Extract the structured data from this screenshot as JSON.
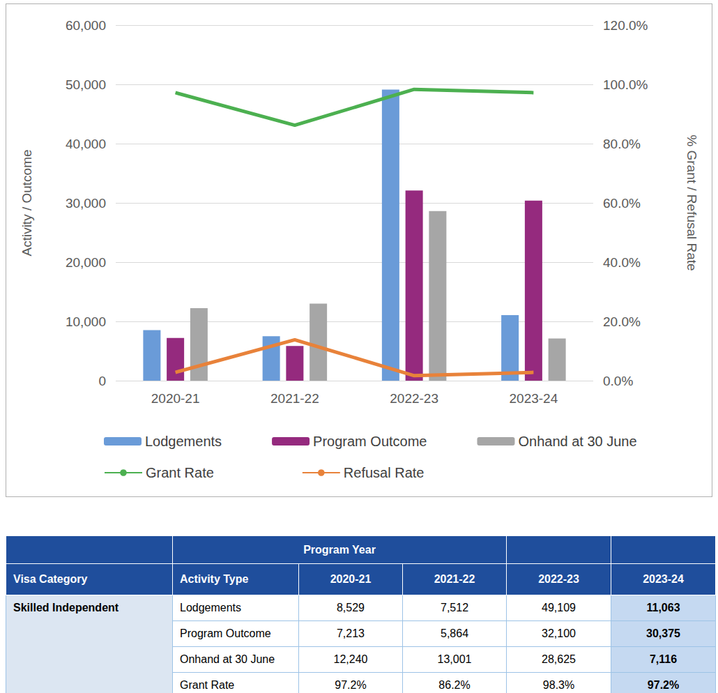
{
  "chart_data": {
    "type": "bar",
    "categories": [
      "2020-21",
      "2021-22",
      "2022-23",
      "2023-24"
    ],
    "series": [
      {
        "name": "Lodgements",
        "type": "bar",
        "color": "#6a9bd8",
        "values": [
          8529,
          7512,
          49109,
          11063
        ]
      },
      {
        "name": "Program Outcome",
        "type": "bar",
        "color": "#952a7e",
        "values": [
          7213,
          5864,
          32100,
          30375
        ]
      },
      {
        "name": "Onhand at 30 June",
        "type": "bar",
        "color": "#a6a6a6",
        "values": [
          12240,
          13001,
          28625,
          7116
        ]
      },
      {
        "name": "Grant Rate",
        "type": "line",
        "axis": "y2",
        "color": "#4cb050",
        "values": [
          97.2,
          86.2,
          98.3,
          97.2
        ]
      },
      {
        "name": "Refusal Rate",
        "type": "line",
        "axis": "y2",
        "color": "#e8823a",
        "values": [
          2.8,
          13.8,
          1.7,
          2.8
        ]
      }
    ],
    "ylabel": "Activity / Outcome",
    "y2label": "% Grant / Refusal Rate",
    "ylim": [
      0,
      60000
    ],
    "yticks": [
      0,
      {
        "value": 10000,
        "label": "10,000"
      },
      {
        "value": 20000,
        "label": "20,000"
      },
      {
        "value": 30000,
        "label": "30,000"
      },
      {
        "value": 40000,
        "label": "40,000"
      },
      {
        "value": 50000,
        "label": "50,000"
      },
      {
        "value": 60000,
        "label": "60,000"
      }
    ],
    "y2lim": [
      0,
      120
    ],
    "y2ticks": [
      {
        "value": 0,
        "label": "0.0%"
      },
      {
        "value": 20,
        "label": "20.0%"
      },
      {
        "value": 40,
        "label": "40.0%"
      },
      {
        "value": 60,
        "label": "60.0%"
      },
      {
        "value": 80,
        "label": "80.0%"
      },
      {
        "value": 100,
        "label": "100.0%"
      },
      {
        "value": 120,
        "label": "120.0%"
      }
    ],
    "grid": true,
    "legend": "bottom"
  },
  "table": {
    "header": {
      "group": "Program Year",
      "columns": [
        "Visa Category",
        "Activity Type",
        "2020-21",
        "2021-22",
        "2022-23",
        "2023-24"
      ]
    },
    "rows": [
      {
        "category": "Skilled Independent",
        "cells": [
          [
            "Lodgements",
            "8,529",
            "7,512",
            "49,109",
            "11,063"
          ],
          [
            "Program Outcome",
            "7,213",
            "5,864",
            "32,100",
            "30,375"
          ],
          [
            "Onhand at 30 June",
            "12,240",
            "13,001",
            "28,625",
            "7,116"
          ],
          [
            "Grant Rate",
            "97.2%",
            "86.2%",
            "98.3%",
            "97.2%"
          ]
        ]
      }
    ]
  }
}
